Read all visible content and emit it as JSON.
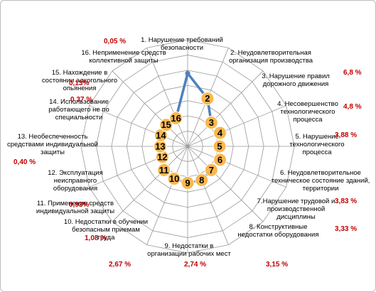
{
  "chart_data": {
    "type": "radar",
    "categories": [
      "1. Нарушение требований безопасности",
      "2. Неудовлетворительная организация производства",
      "3. Нарушение правил дорожного движения",
      "4. Несовершенство технологического процесса",
      "5. Нарушение технологического процесса",
      "6. Неудовлетворительное техническое состояние зданий, территории",
      "7.Нарушение трудовой и производственной дисциплины",
      "8. Конструктивные недостатки оборудования",
      "9. Недостатки в организации рабочих мест",
      "10. Недостатки в обучении безопасным приемам труда",
      "11. Применение средств индивидуальной защиты",
      "12. Эксплуатация неисправного оборудования",
      "13. Необеспеченность средствами индивидуальной защиты",
      "14. Использование работающего не по специальности",
      "15. Нахождение в состоянии алкогольного опьянения",
      "16. Неприменение средств коллективной защиты"
    ],
    "values": [
      48,
      34,
      22,
      23,
      21,
      23,
      22,
      24,
      24,
      23,
      22,
      18,
      18,
      19,
      20,
      20
    ],
    "marker_labels": [
      null,
      "2",
      "3",
      "4",
      "5",
      "6",
      "7",
      "8",
      "9",
      "10",
      "11",
      "12",
      "13",
      "14",
      "15",
      "16"
    ],
    "color": "#4f81bd",
    "marker_color": "#f9b74e",
    "rlim": [
      0,
      70
    ],
    "rings": 7,
    "annotations": [
      "0,05 %",
      "6,8 %",
      "4,8 %",
      "3,88 %",
      "0,13%",
      "0,37 %",
      "0,40 %",
      "3,83 %",
      "0,93%",
      "1,08 %",
      "3,33 %",
      "2,67 %",
      "2,74 %",
      "3,15 %"
    ]
  }
}
